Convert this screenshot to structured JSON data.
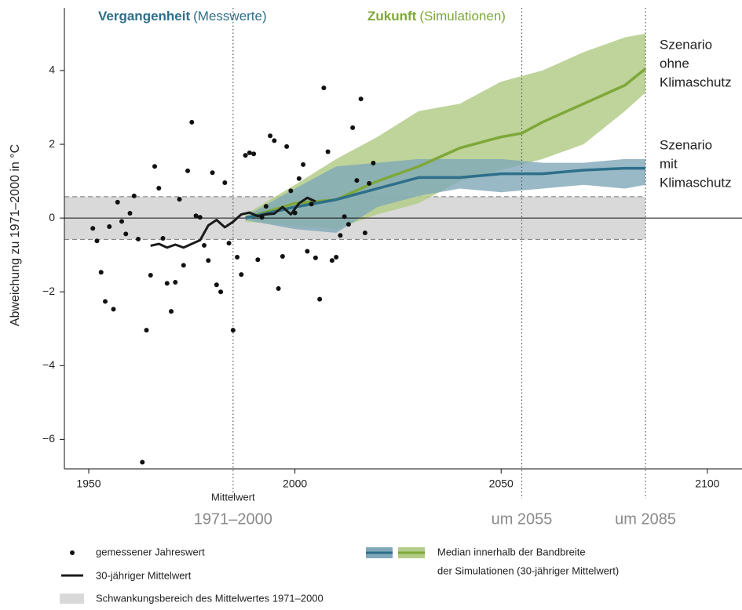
{
  "chart_data": {
    "type": "line",
    "header_past": {
      "bold": "Vergangenheit",
      "rest": "(Messwerte)",
      "color": "#2e6f8a"
    },
    "header_future": {
      "bold": "Zukunft",
      "rest": "(Simulationen)",
      "color": "#7ea838"
    },
    "ylabel": "Abweichung zu 1971–2000 in °C",
    "xlim": [
      1944.1,
      2108.4
    ],
    "ylim": [
      -6.8,
      5.7
    ],
    "xticks": [
      1950,
      2000,
      2050,
      2100
    ],
    "yticks": [
      {
        "value": -6,
        "label": "−6"
      },
      {
        "value": -4,
        "label": "−4"
      },
      {
        "value": -2,
        "label": "−2"
      },
      0,
      2,
      4
    ],
    "vlines": [
      1985,
      2055,
      2085
    ],
    "vline_labels": [
      [
        "Mittelwert",
        "1971–2000"
      ],
      [
        "um 2055"
      ],
      [
        "um 2085"
      ]
    ],
    "reference_band": {
      "name": "Schwankungsbereich des Mittelwertes 1971–2000",
      "range": [
        -0.58,
        0.58
      ],
      "color": "#d9d9d9"
    },
    "observations": {
      "name": "gemessener Jahreswert",
      "color": "#111",
      "x": [
        1951,
        1952,
        1953,
        1954,
        1955,
        1956,
        1957,
        1958,
        1959,
        1960,
        1961,
        1962,
        1963,
        1964,
        1965,
        1966,
        1967,
        1968,
        1969,
        1970,
        1971,
        1972,
        1973,
        1974,
        1975,
        1976,
        1977,
        1978,
        1979,
        1980,
        1981,
        1982,
        1983,
        1984,
        1985,
        1986,
        1987,
        1988,
        1989,
        1990,
        1991,
        1992,
        1993,
        1994,
        1995,
        1996,
        1997,
        1998,
        1999,
        2000,
        2001,
        2002,
        2003,
        2004,
        2005,
        2006,
        2007,
        2008,
        2009,
        2010,
        2011,
        2012,
        2013,
        2014,
        2015,
        2016,
        2017,
        2018,
        2019
      ],
      "values": [
        -0.28,
        -0.62,
        -1.47,
        -2.26,
        -0.23,
        -2.47,
        0.43,
        -0.09,
        -0.43,
        0.13,
        0.6,
        -0.57,
        -6.62,
        -3.04,
        -1.55,
        1.4,
        0.81,
        -0.55,
        -1.77,
        -2.53,
        -1.74,
        0.51,
        -1.28,
        1.28,
        2.6,
        0.06,
        0.02,
        -0.74,
        -1.15,
        1.23,
        -1.81,
        -2.0,
        0.96,
        -0.68,
        -3.04,
        -1.06,
        -1.53,
        1.7,
        1.77,
        1.74,
        -1.13,
        0.02,
        0.32,
        2.23,
        2.1,
        -1.91,
        -1.04,
        1.94,
        0.74,
        0.14,
        1.07,
        1.45,
        -0.9,
        0.38,
        -1.08,
        -2.2,
        3.53,
        1.8,
        -1.15,
        -1.06,
        -0.47,
        0.04,
        -0.17,
        2.45,
        1.02,
        3.23,
        -0.4,
        0.94,
        1.49
      ]
    },
    "mean30": {
      "name": "30-jähriger Mittelwert",
      "color": "#1a1a1a",
      "x": [
        1965,
        1967,
        1969,
        1971,
        1973,
        1975,
        1977,
        1979,
        1981,
        1983,
        1985,
        1987,
        1989,
        1991,
        1993,
        1995,
        1997,
        1999,
        2001,
        2003,
        2005
      ],
      "values": [
        -0.75,
        -0.7,
        -0.8,
        -0.72,
        -0.8,
        -0.7,
        -0.6,
        -0.2,
        -0.05,
        -0.25,
        -0.1,
        0.1,
        0.15,
        0.05,
        0.1,
        0.12,
        0.3,
        0.1,
        0.4,
        0.55,
        0.45
      ]
    },
    "scenarios": [
      {
        "label": [
          "Szenario",
          "ohne",
          "Klimaschutz"
        ],
        "color": "#7ea838",
        "band_color": "#b3cd88",
        "x": [
          1988,
          2000,
          2010,
          2020,
          2030,
          2040,
          2050,
          2055,
          2060,
          2070,
          2080,
          2085
        ],
        "values": [
          0.0,
          0.4,
          0.5,
          1.0,
          1.4,
          1.9,
          2.2,
          2.3,
          2.6,
          3.1,
          3.6,
          4.05
        ],
        "lower": [
          -0.1,
          -0.2,
          -0.3,
          0.1,
          0.4,
          1.0,
          1.3,
          1.45,
          1.6,
          2.0,
          2.9,
          3.4
        ],
        "upper": [
          0.1,
          0.9,
          1.6,
          2.2,
          2.9,
          3.1,
          3.7,
          3.85,
          4.0,
          4.5,
          4.9,
          5.0
        ]
      },
      {
        "label": [
          "Szenario",
          "mit",
          "Klimaschutz"
        ],
        "color": "#2e6f8a",
        "band_color": "#7fa8b8",
        "x": [
          1988,
          2000,
          2010,
          2020,
          2030,
          2040,
          2050,
          2055,
          2060,
          2070,
          2080,
          2085
        ],
        "values": [
          0.0,
          0.3,
          0.5,
          0.8,
          1.1,
          1.1,
          1.2,
          1.2,
          1.2,
          1.3,
          1.35,
          1.35
        ],
        "lower": [
          -0.05,
          -0.3,
          -0.4,
          0.3,
          0.6,
          0.8,
          0.7,
          0.75,
          0.8,
          0.9,
          0.8,
          0.9
        ],
        "upper": [
          0.05,
          0.8,
          1.4,
          1.5,
          1.6,
          1.6,
          1.6,
          1.55,
          1.5,
          1.5,
          1.6,
          1.6
        ]
      }
    ],
    "band_legend": [
      "Median innerhalb der Bandbreite",
      "der Simulationen (30-jähriger Mittelwert)"
    ]
  }
}
